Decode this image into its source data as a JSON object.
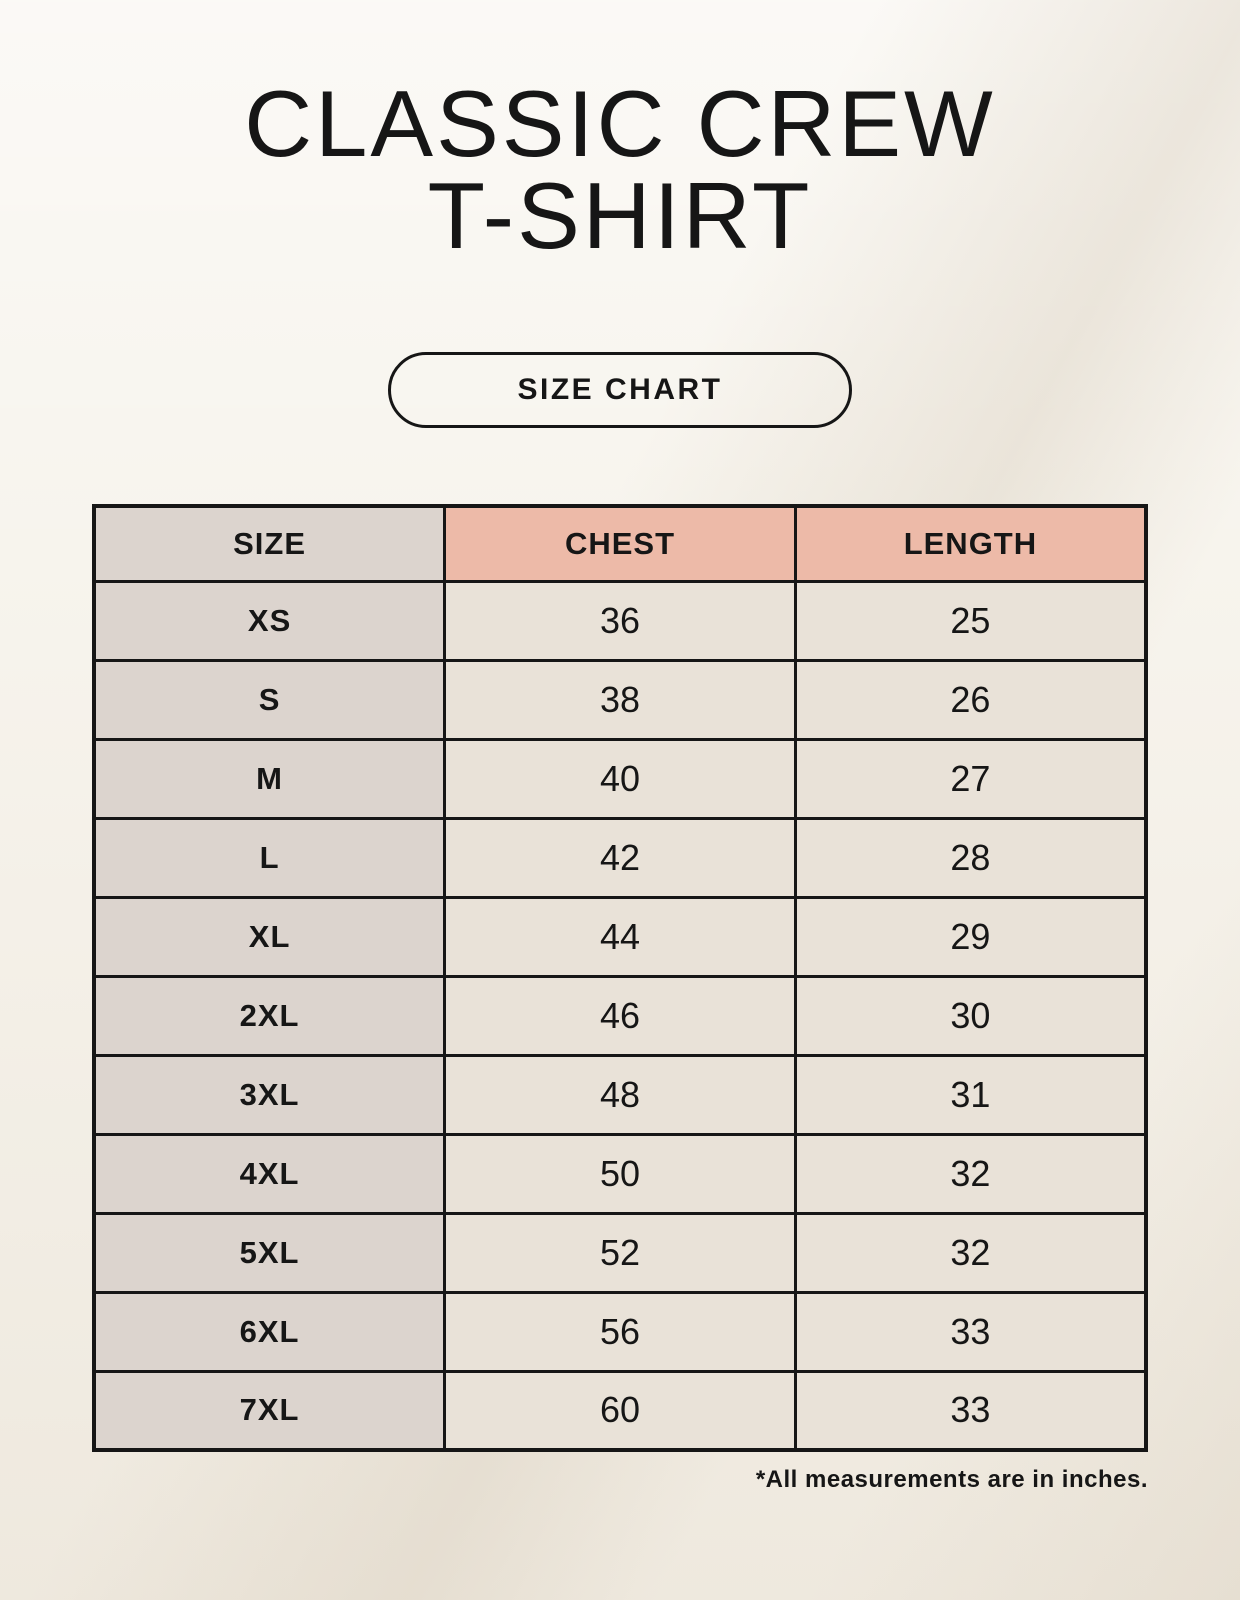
{
  "header": {
    "title_line1": "CLASSIC CREW",
    "title_line2": "T-SHIRT",
    "button_label": "SIZE CHART"
  },
  "footer": {
    "note": "*All measurements are in inches."
  },
  "colors": {
    "background": "#f7f4ed",
    "header_accent": "#edbaa8",
    "size_column": "#dcd4ce",
    "cell": "#e9e2d8",
    "ink": "#161616"
  },
  "chart_data": {
    "type": "table",
    "title": "Classic Crew T-Shirt Size Chart",
    "columns": [
      "SIZE",
      "CHEST",
      "LENGTH"
    ],
    "rows": [
      [
        "XS",
        "36",
        "25"
      ],
      [
        "S",
        "38",
        "26"
      ],
      [
        "M",
        "40",
        "27"
      ],
      [
        "L",
        "42",
        "28"
      ],
      [
        "XL",
        "44",
        "29"
      ],
      [
        "2XL",
        "46",
        "30"
      ],
      [
        "3XL",
        "48",
        "31"
      ],
      [
        "4XL",
        "50",
        "32"
      ],
      [
        "5XL",
        "52",
        "32"
      ],
      [
        "6XL",
        "56",
        "33"
      ],
      [
        "7XL",
        "60",
        "33"
      ]
    ],
    "units": "inches"
  }
}
